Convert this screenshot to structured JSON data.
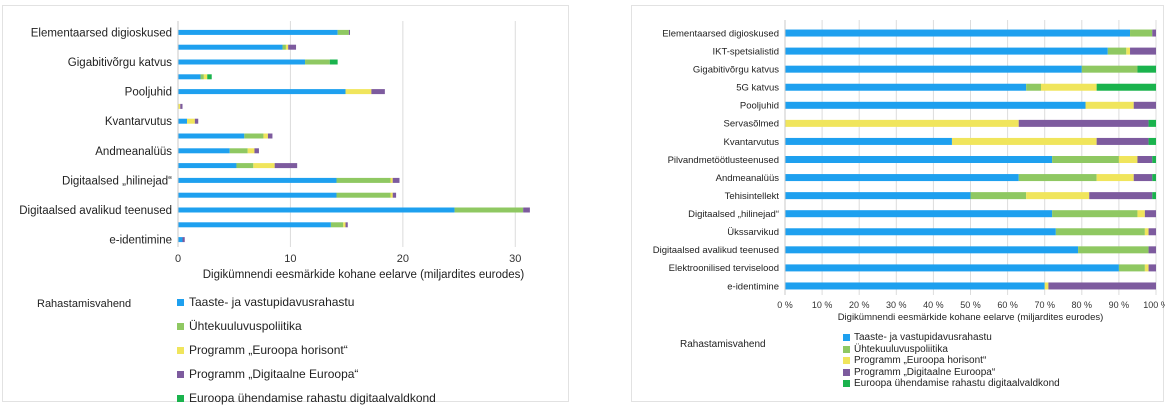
{
  "colors": {
    "taaste": "#1ea0ef",
    "uhtekuuluvus": "#8fc862",
    "horisont": "#f0e55c",
    "digitaalne": "#7d5b9e",
    "cef": "#1ab34d",
    "axis": "#c8c8c8",
    "grid": "#dcdcdc"
  },
  "legend": {
    "title": "Rahastamisvahend",
    "items": [
      {
        "label": "Taaste- ja vastupidavusrahastu",
        "color": "#1ea0ef"
      },
      {
        "label": "Ühtekuuluvuspoliitika",
        "color": "#8fc862"
      },
      {
        "label": "Programm „Euroopa horisont“",
        "color": "#f0e55c"
      },
      {
        "label": "Programm „Digitaalne Euroopa“",
        "color": "#7d5b9e"
      },
      {
        "label": "Euroopa ühendamise rahastu digitaalvaldkond",
        "color": "#1ab34d"
      }
    ]
  },
  "chart_data": [
    {
      "type": "bar",
      "orientation": "horizontal",
      "stacked": true,
      "categories": [
        "Elementaarsed digioskused",
        "",
        "Gigabitivõrgu katvus",
        "",
        "Pooljuhid",
        "",
        "Kvantarvutus",
        "",
        "Andmeanalüüs",
        "",
        "Digitaalsed „hilinejad“",
        "",
        "Digitaalsed avalikud teenused",
        "",
        "e-identimine"
      ],
      "full_categories": [
        "Elementaarsed digioskused",
        "IKT-spetsialistid",
        "Gigabitivõrgu katvus",
        "5G katvus",
        "Pooljuhid",
        "Servasõlmed",
        "Kvantarvutus",
        "Pilvandmetöötlusteenused",
        "Andmeanalüüs",
        "Tehisintellekt",
        "Digitaalsed „hilinejad“",
        "Ükssarvikud",
        "Digitaalsed avalikud teenused",
        "Elektroonilised terviselood",
        "e-identimine"
      ],
      "series": [
        {
          "name": "Taaste- ja vastupidavusrahastu",
          "values": [
            14.2,
            9.3,
            11.3,
            2.0,
            14.9,
            0.0,
            0.8,
            5.9,
            4.6,
            5.2,
            14.1,
            14.1,
            24.6,
            13.6,
            0.4
          ]
        },
        {
          "name": "Ühtekuuluvuspoliitika",
          "values": [
            1.0,
            0.3,
            2.2,
            0.3,
            0.0,
            0.0,
            0.0,
            1.7,
            1.6,
            1.5,
            4.8,
            4.8,
            6.1,
            1.1,
            0.0
          ]
        },
        {
          "name": "Programm „Euroopa horisont“",
          "values": [
            0.0,
            0.2,
            0.0,
            0.3,
            2.3,
            0.2,
            0.7,
            0.4,
            0.6,
            1.9,
            0.2,
            0.2,
            0.0,
            0.2,
            0.0
          ]
        },
        {
          "name": "Programm „Digitaalne Euroopa“",
          "values": [
            0.1,
            0.7,
            0.0,
            0.0,
            1.2,
            0.2,
            0.3,
            0.4,
            0.4,
            2.0,
            0.6,
            0.3,
            0.6,
            0.2,
            0.2
          ]
        },
        {
          "name": "Euroopa ühendamise rahastu digitaalvaldkond",
          "values": [
            0.0,
            0.0,
            0.7,
            0.4,
            0.0,
            0.0,
            0.0,
            0.0,
            0.0,
            0.0,
            0.0,
            0.0,
            0.0,
            0.0,
            0.0
          ]
        }
      ],
      "xlabel": "Digikümnendi eesmärkide kohane eelarve (miljardites eurodes)",
      "xlim": [
        0,
        33
      ],
      "xticks": [
        0,
        10,
        20,
        30
      ],
      "grid": true,
      "legend_position": "bottom"
    },
    {
      "type": "bar",
      "orientation": "horizontal",
      "stacked": true,
      "percent": true,
      "categories": [
        "Elementaarsed digioskused",
        "IKT-spetsialistid",
        "Gigabitivõrgu katvus",
        "5G katvus",
        "Pooljuhid",
        "Servasõlmed",
        "Kvantarvutus",
        "Pilvandmetöötlusteenused",
        "Andmeanalüüs",
        "Tehisintellekt",
        "Digitaalsed „hilinejad“",
        "Ükssarvikud",
        "Digitaalsed avalikud teenused",
        "Elektroonilised terviselood",
        "e-identimine"
      ],
      "series": [
        {
          "name": "Taaste- ja vastupidavusrahastu",
          "values": [
            93,
            87,
            80,
            65,
            81,
            0,
            45,
            72,
            63,
            50,
            72,
            73,
            79,
            90,
            70
          ]
        },
        {
          "name": "Ühtekuuluvuspoliitika",
          "values": [
            6,
            5,
            15,
            4,
            0,
            0,
            0,
            18,
            21,
            15,
            23,
            24,
            19,
            7,
            0
          ]
        },
        {
          "name": "Programm „Euroopa horisont“",
          "values": [
            0,
            1,
            0,
            15,
            13,
            63,
            39,
            5,
            10,
            17,
            2,
            1,
            0,
            1,
            1
          ]
        },
        {
          "name": "Programm „Digitaalne Euroopa“",
          "values": [
            1,
            7,
            0,
            0,
            6,
            35,
            14,
            4,
            5,
            17,
            3,
            2,
            2,
            2,
            29
          ]
        },
        {
          "name": "Euroopa ühendamise rahastu digitaalvaldkond",
          "values": [
            0,
            0,
            5,
            16,
            0,
            2,
            2,
            1,
            1,
            1,
            0,
            0,
            0,
            0,
            0
          ]
        }
      ],
      "xlabel": "Digikümnendi eesmärkide kohane eelarve (miljardites eurodes)",
      "xlim": [
        0,
        100
      ],
      "xticks": [
        "0 %",
        "10 %",
        "20 %",
        "30 %",
        "40 %",
        "50 %",
        "60 %",
        "70 %",
        "80 %",
        "90 %",
        "100 %"
      ],
      "grid": true,
      "legend_position": "bottom"
    }
  ]
}
